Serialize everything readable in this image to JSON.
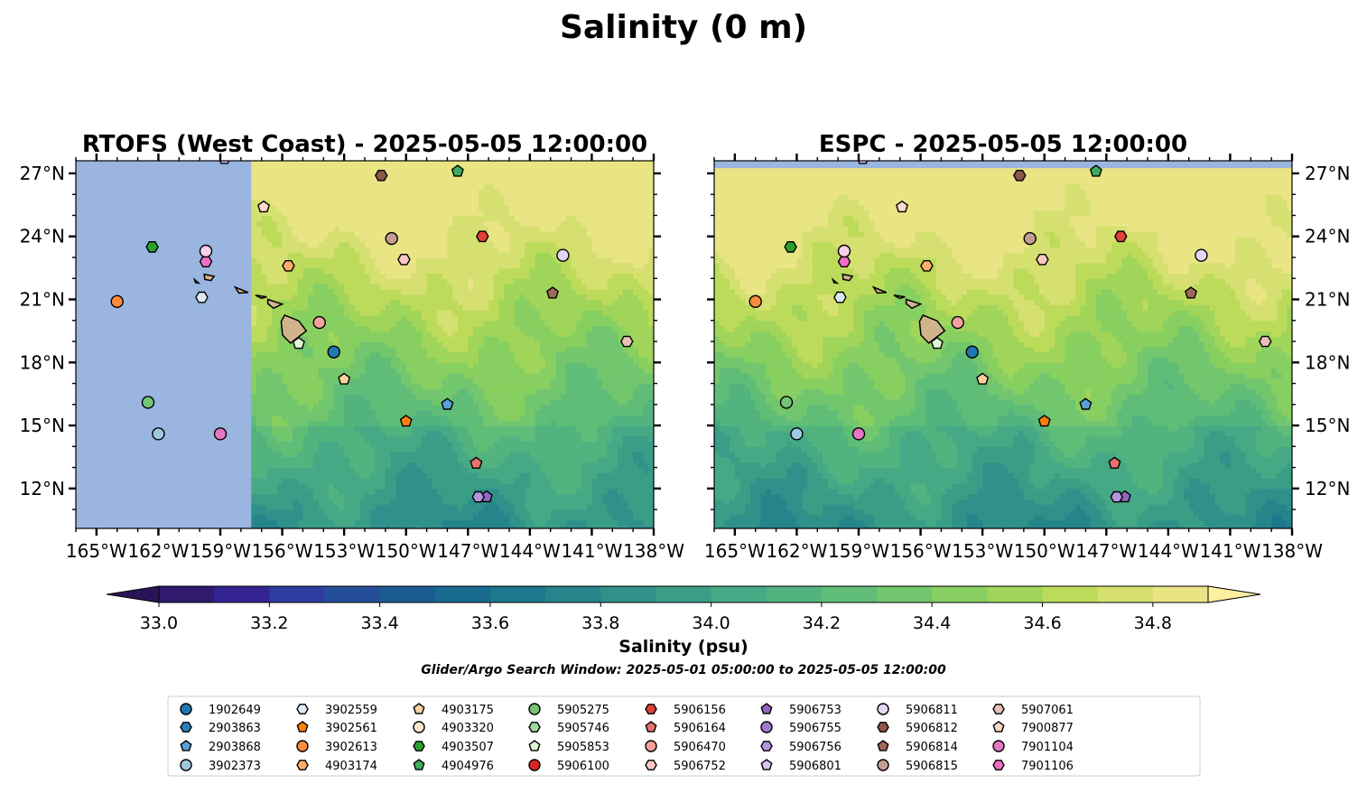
{
  "suptitle": "Salinity (0 m)",
  "panels": [
    {
      "title": "RTOFS (West Coast) - 2025-05-05 12:00:00",
      "model": "RTOFS",
      "coverage_west_lon": -157.5,
      "coverage_south_lat": 10.0,
      "coverage_north_lat": 28.0
    },
    {
      "title": "ESPC - 2025-05-05 12:00:00",
      "model": "ESPC",
      "coverage_west_lon": -166.0,
      "coverage_south_lat": 10.0,
      "coverage_north_lat": 27.2
    }
  ],
  "map_extent": {
    "lon_min": -166.0,
    "lon_max": -138.0,
    "lat_min": 10.1,
    "lat_max": 27.6
  },
  "x_tick_labels": [
    "165°W",
    "162°W",
    "159°W",
    "156°W",
    "153°W",
    "150°W",
    "147°W",
    "144°W",
    "141°W",
    "138°W"
  ],
  "x_tick_values": [
    -165,
    -162,
    -159,
    -156,
    -153,
    -150,
    -147,
    -144,
    -141,
    -138
  ],
  "y_tick_labels": [
    "27°N",
    "24°N",
    "21°N",
    "18°N",
    "15°N",
    "12°N"
  ],
  "y_tick_values": [
    27,
    24,
    21,
    18,
    15,
    12
  ],
  "colorbar": {
    "label": "Salinity (psu)",
    "min": 33.0,
    "max": 34.9,
    "step": 0.1,
    "extend": "both",
    "tick_labels": [
      "33.0",
      "33.2",
      "33.4",
      "33.6",
      "33.8",
      "34.0",
      "34.2",
      "34.4",
      "34.6",
      "34.8"
    ],
    "tick_values": [
      33.0,
      33.2,
      33.4,
      33.6,
      33.8,
      34.0,
      34.2,
      34.4,
      34.6,
      34.8
    ],
    "colors": [
      "#2f1a6e",
      "#342493",
      "#2f3ca0",
      "#254e9a",
      "#1a5c92",
      "#176a8e",
      "#1b788d",
      "#25858b",
      "#2f918a",
      "#3a9d86",
      "#46a985",
      "#52b37f",
      "#60bd77",
      "#72c66d",
      "#88cf61",
      "#a0d55a",
      "#bddb5b",
      "#d6e071",
      "#e9e584"
    ],
    "under_color": "#2a1458",
    "over_color": "#fdf0a0"
  },
  "no_data_color": "#99b5e0",
  "land_color": "#d2b48c",
  "search_window": "Glider/Argo Search Window: 2025-05-01 05:00:00 to 2025-05-05 12:00:00",
  "legend": [
    {
      "id": "1902649",
      "marker": "circle",
      "color": "#1f77b4",
      "lon": -153.5,
      "lat": 18.5
    },
    {
      "id": "2903863",
      "marker": "hexagon",
      "color": "#2e7fb8",
      "lon": null,
      "lat": null
    },
    {
      "id": "2903868",
      "marker": "pentagon",
      "color": "#5aa0d8",
      "lon": -148.0,
      "lat": 16.0
    },
    {
      "id": "3902373",
      "marker": "circle",
      "color": "#9ecae1",
      "lon": -162.0,
      "lat": 14.6
    },
    {
      "id": "3902559",
      "marker": "hexagon",
      "color": "#deebf7",
      "lon": -159.9,
      "lat": 21.1
    },
    {
      "id": "3902561",
      "marker": "pentagon",
      "color": "#ff7f0e",
      "lon": -150.0,
      "lat": 15.2
    },
    {
      "id": "3902613",
      "marker": "circle",
      "color": "#fd8d3c",
      "lon": -164.0,
      "lat": 20.9
    },
    {
      "id": "4903174",
      "marker": "hexagon",
      "color": "#fdae6b",
      "lon": -155.7,
      "lat": 22.6
    },
    {
      "id": "4903175",
      "marker": "pentagon",
      "color": "#fdd0a2",
      "lon": -153.0,
      "lat": 17.2
    },
    {
      "id": "4903320",
      "marker": "circle",
      "color": "#fee6ce",
      "lon": null,
      "lat": null
    },
    {
      "id": "4903507",
      "marker": "hexagon",
      "color": "#2ca02c",
      "lon": -162.3,
      "lat": 23.5
    },
    {
      "id": "4904976",
      "marker": "pentagon",
      "color": "#41ab5d",
      "lon": -147.5,
      "lat": 27.1
    },
    {
      "id": "5905275",
      "marker": "circle",
      "color": "#74c476",
      "lon": -162.5,
      "lat": 16.1
    },
    {
      "id": "5905746",
      "marker": "hexagon",
      "color": "#a1d99b",
      "lon": null,
      "lat": null
    },
    {
      "id": "5905853",
      "marker": "pentagon",
      "color": "#dff5d5",
      "lon": -155.2,
      "lat": 18.9
    },
    {
      "id": "5906100",
      "marker": "circle",
      "color": "#d62728",
      "lon": null,
      "lat": null
    },
    {
      "id": "5906156",
      "marker": "hexagon",
      "color": "#e0403a",
      "lon": -146.3,
      "lat": 24.0
    },
    {
      "id": "5906164",
      "marker": "pentagon",
      "color": "#e8716d",
      "lon": -146.6,
      "lat": 13.2
    },
    {
      "id": "5906470",
      "marker": "circle",
      "color": "#f4a09c",
      "lon": -154.2,
      "lat": 19.9
    },
    {
      "id": "5906752",
      "marker": "hexagon",
      "color": "#fac7c2",
      "lon": -150.1,
      "lat": 22.9
    },
    {
      "id": "5906753",
      "marker": "pentagon",
      "color": "#9467bd",
      "lon": -146.1,
      "lat": 11.6
    },
    {
      "id": "5906755",
      "marker": "circle",
      "color": "#9e7ac8",
      "lon": null,
      "lat": null
    },
    {
      "id": "5906756",
      "marker": "hexagon",
      "color": "#b394dd",
      "lon": -146.5,
      "lat": 11.6
    },
    {
      "id": "5906801",
      "marker": "pentagon",
      "color": "#d7c4f2",
      "lon": -158.8,
      "lat": 27.7
    },
    {
      "id": "5906811",
      "marker": "circle",
      "color": "#e2d6f8",
      "lon": -142.4,
      "lat": 23.1
    },
    {
      "id": "5906812",
      "marker": "hexagon",
      "color": "#8c564b",
      "lon": -151.2,
      "lat": 26.9
    },
    {
      "id": "5906814",
      "marker": "pentagon",
      "color": "#a0685b",
      "lon": -142.9,
      "lat": 21.3
    },
    {
      "id": "5906815",
      "marker": "circle",
      "color": "#c49c94",
      "lon": -150.7,
      "lat": 23.9
    },
    {
      "id": "5907061",
      "marker": "hexagon",
      "color": "#e7c0b6",
      "lon": -139.3,
      "lat": 19.0
    },
    {
      "id": "7900877",
      "marker": "pentagon",
      "color": "#f9d9c9",
      "lon": -156.9,
      "lat": 25.4
    },
    {
      "id": "7901104",
      "marker": "circle",
      "color": "#e377c2",
      "lon": -159.0,
      "lat": 14.6
    },
    {
      "id": "7901106",
      "marker": "hexagon",
      "color": "#ef6ec6",
      "lon": -159.7,
      "lat": 22.8
    },
    {
      "id": "",
      "marker": "circle",
      "color": "#f7d0e6",
      "lon": -159.7,
      "lat": 23.3
    }
  ]
}
